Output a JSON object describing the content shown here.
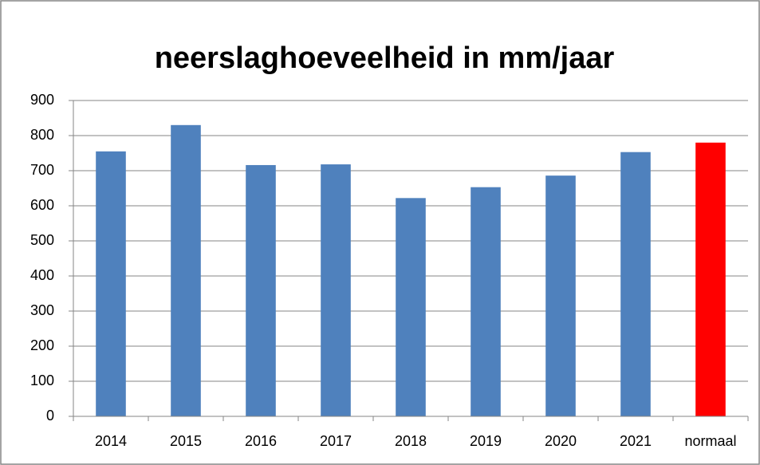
{
  "chart_data": {
    "type": "bar",
    "title": "neerslaghoeveelheid in mm/jaar",
    "categories": [
      "2014",
      "2015",
      "2016",
      "2017",
      "2018",
      "2019",
      "2020",
      "2021",
      "normaal"
    ],
    "values": [
      755,
      830,
      716,
      718,
      622,
      653,
      686,
      753,
      780
    ],
    "colors": [
      "#4f81bd",
      "#4f81bd",
      "#4f81bd",
      "#4f81bd",
      "#4f81bd",
      "#4f81bd",
      "#4f81bd",
      "#4f81bd",
      "#ff0000"
    ],
    "ylim": [
      0,
      900
    ],
    "yticks": [
      0,
      100,
      200,
      300,
      400,
      500,
      600,
      700,
      800,
      900
    ],
    "grid": true
  }
}
